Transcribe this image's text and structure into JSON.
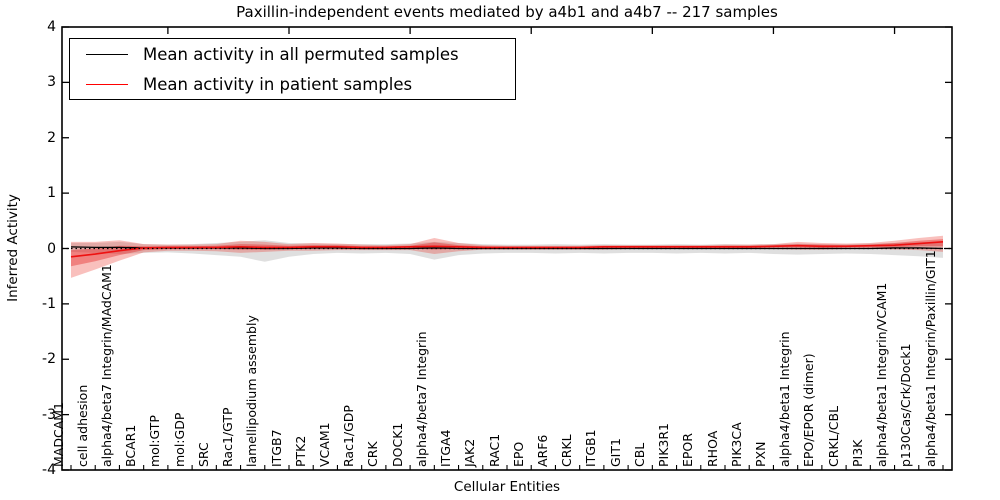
{
  "title": "Paxillin-independent events mediated by a4b1 and a4b7 -- 217 samples",
  "legend": {
    "items": [
      {
        "label": "Mean activity in all permuted samples",
        "color": "#000000"
      },
      {
        "label": "Mean activity in patient samples",
        "color": "#ff0000"
      }
    ]
  },
  "colors": {
    "permuted_line": "#000000",
    "patient_line": "#ee1111",
    "permuted_band": "rgba(80,80,80,0.18)",
    "patient_band": "rgba(235,45,35,0.30)",
    "patient_band_inner": "rgba(225,25,25,0.38)",
    "axis": "#000000",
    "zero_line": "#000000",
    "background": "#ffffff"
  },
  "chart_data": {
    "type": "line",
    "title": "Paxillin-independent events mediated by a4b1 and a4b7 -- 217 samples",
    "xlabel": "Cellular Entities",
    "ylabel": "Inferred Activity",
    "ylim": [
      -4,
      4
    ],
    "yticks": [
      "-4",
      "-3",
      "-2",
      "-1",
      "0",
      "1",
      "2",
      "3",
      "4"
    ],
    "ytick_values": [
      -4,
      -3,
      -2,
      -1,
      0,
      1,
      2,
      3,
      4
    ],
    "grid": false,
    "zero_line_style": "dotted",
    "legend_position": "upper left",
    "top_tick_indices": [
      4,
      9,
      14,
      19,
      24,
      29,
      34
    ],
    "categories": [
      "MADCAM1",
      "cell adhesion",
      "alpha4/beta7 Integrin/MAdCAM1",
      "BCAR1",
      "mol:GTP",
      "mol:GDP",
      "SRC",
      "Rac1/GTP",
      "lamellipodium assembly",
      "ITGB7",
      "PTK2",
      "VCAM1",
      "Rac1/GDP",
      "CRK",
      "DOCK1",
      "alpha4/beta7 Integrin",
      "ITGA4",
      "JAK2",
      "RAC1",
      "EPO",
      "ARF6",
      "CRKL",
      "ITGB1",
      "GIT1",
      "CBL",
      "PIK3R1",
      "EPOR",
      "RHOA",
      "PIK3CA",
      "PXN",
      "alpha4/beta1 Integrin",
      "EPO/EPOR (dimer)",
      "CRKL/CBL",
      "PI3K",
      "alpha4/beta1 Integrin/VCAM1",
      "p130Cas/Crk/Dock1",
      "alpha4/beta1 Integrin/Paxillin/GIT1"
    ],
    "series": [
      {
        "name": "Mean activity in all permuted samples",
        "color": "#000000",
        "values": [
          0.03,
          0.02,
          0.02,
          0.01,
          0.01,
          0.01,
          0.01,
          0.01,
          0.0,
          0.0,
          0.01,
          0.01,
          0.0,
          0.0,
          0.0,
          0.01,
          0.0,
          0.0,
          0.0,
          0.0,
          0.0,
          0.0,
          0.0,
          0.0,
          0.0,
          0.0,
          0.0,
          0.0,
          0.0,
          0.0,
          0.0,
          0.0,
          0.0,
          0.0,
          0.01,
          0.01,
          0.0
        ]
      },
      {
        "name": "Mean activity in patient samples",
        "color": "#ee1111",
        "values": [
          -0.15,
          -0.1,
          -0.04,
          0.01,
          0.02,
          0.02,
          0.02,
          0.03,
          0.02,
          0.02,
          0.03,
          0.03,
          0.02,
          0.02,
          0.03,
          0.04,
          0.03,
          0.02,
          0.02,
          0.02,
          0.02,
          0.02,
          0.03,
          0.03,
          0.03,
          0.03,
          0.03,
          0.03,
          0.03,
          0.04,
          0.05,
          0.04,
          0.04,
          0.05,
          0.06,
          0.09,
          0.12
        ]
      }
    ],
    "bands": [
      {
        "name": "permuted-samples-range",
        "color": "rgba(80,80,80,0.18)",
        "upper": [
          0.1,
          0.1,
          0.12,
          0.08,
          0.07,
          0.08,
          0.1,
          0.12,
          0.15,
          0.1,
          0.09,
          0.08,
          0.08,
          0.08,
          0.09,
          0.12,
          0.1,
          0.08,
          0.07,
          0.07,
          0.08,
          0.07,
          0.08,
          0.07,
          0.07,
          0.08,
          0.07,
          0.08,
          0.07,
          0.08,
          0.09,
          0.08,
          0.08,
          0.09,
          0.1,
          0.11,
          0.12
        ],
        "lower": [
          -0.06,
          -0.08,
          -0.1,
          -0.08,
          -0.07,
          -0.09,
          -0.12,
          -0.15,
          -0.24,
          -0.15,
          -0.1,
          -0.08,
          -0.09,
          -0.08,
          -0.1,
          -0.2,
          -0.12,
          -0.09,
          -0.08,
          -0.08,
          -0.09,
          -0.08,
          -0.09,
          -0.08,
          -0.08,
          -0.09,
          -0.08,
          -0.09,
          -0.08,
          -0.1,
          -0.11,
          -0.1,
          -0.09,
          -0.1,
          -0.12,
          -0.14,
          -0.17
        ]
      },
      {
        "name": "patient-samples-range",
        "color": "rgba(235,45,35,0.30)",
        "upper": [
          0.12,
          0.12,
          0.15,
          0.08,
          0.07,
          0.07,
          0.08,
          0.14,
          0.12,
          0.08,
          0.1,
          0.09,
          0.07,
          0.06,
          0.08,
          0.19,
          0.1,
          0.06,
          0.05,
          0.05,
          0.05,
          0.05,
          0.06,
          0.06,
          0.06,
          0.06,
          0.06,
          0.07,
          0.07,
          0.08,
          0.12,
          0.1,
          0.09,
          0.1,
          0.14,
          0.19,
          0.23
        ],
        "lower": [
          -0.53,
          -0.38,
          -0.22,
          -0.07,
          -0.04,
          -0.04,
          -0.05,
          -0.08,
          -0.06,
          -0.04,
          -0.04,
          -0.03,
          -0.03,
          -0.03,
          -0.03,
          -0.1,
          -0.05,
          -0.02,
          -0.02,
          -0.02,
          -0.02,
          -0.02,
          -0.02,
          -0.01,
          -0.01,
          -0.01,
          -0.01,
          -0.01,
          -0.01,
          -0.01,
          -0.02,
          -0.02,
          -0.01,
          -0.01,
          -0.02,
          -0.03,
          -0.06
        ]
      },
      {
        "name": "patient-samples-range-inner",
        "color": "rgba(225,25,25,0.38)",
        "upper": [
          -0.03,
          0.0,
          0.05,
          0.04,
          0.04,
          0.04,
          0.05,
          0.08,
          0.07,
          0.05,
          0.06,
          0.06,
          0.04,
          0.04,
          0.05,
          0.11,
          0.06,
          0.04,
          0.03,
          0.03,
          0.03,
          0.03,
          0.04,
          0.04,
          0.04,
          0.04,
          0.04,
          0.05,
          0.05,
          0.06,
          0.08,
          0.07,
          0.06,
          0.07,
          0.1,
          0.14,
          0.17
        ],
        "lower": [
          -0.32,
          -0.23,
          -0.12,
          -0.03,
          -0.01,
          -0.01,
          -0.01,
          -0.02,
          -0.02,
          -0.01,
          0.0,
          0.0,
          0.0,
          0.0,
          0.0,
          -0.02,
          -0.01,
          0.0,
          0.0,
          0.0,
          0.0,
          0.0,
          0.01,
          0.01,
          0.01,
          0.01,
          0.01,
          0.01,
          0.01,
          0.02,
          0.02,
          0.01,
          0.02,
          0.02,
          0.02,
          0.04,
          0.04
        ]
      }
    ]
  }
}
